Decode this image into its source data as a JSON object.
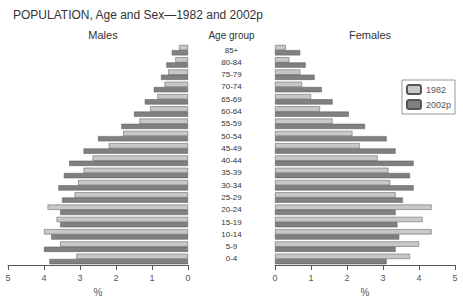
{
  "chart_data": {
    "type": "bar",
    "orientation": "horizontal",
    "title": "POPULATION, Age and Sex—1982 and 2002p",
    "ylabel": "Age group",
    "categories": [
      "0-4",
      "5-9",
      "10-14",
      "15-19",
      "20-24",
      "25-29",
      "30-34",
      "35-39",
      "40-44",
      "45-49",
      "50-54",
      "55-59",
      "60-64",
      "65-69",
      "70-74",
      "75-79",
      "80-84",
      "85+"
    ],
    "grid": false,
    "legend": "upper right",
    "panels": [
      {
        "title": "Males",
        "xlabel": "%",
        "xlim": [
          5,
          0
        ],
        "xticks": [
          5,
          4,
          3,
          2,
          1,
          0
        ],
        "series": [
          {
            "name": "1982",
            "color": "#c8c8c8",
            "values": [
              3.1,
              3.55,
              4.0,
              3.65,
              3.9,
              3.15,
              3.05,
              2.9,
              2.65,
              2.2,
              1.8,
              1.35,
              1.05,
              0.85,
              0.65,
              0.55,
              0.35,
              0.25
            ]
          },
          {
            "name": "2002p",
            "color": "#808080",
            "values": [
              3.85,
              4.0,
              3.8,
              3.55,
              3.55,
              3.5,
              3.6,
              3.45,
              3.3,
              2.9,
              2.5,
              1.85,
              1.5,
              1.2,
              0.95,
              0.75,
              0.6,
              0.45
            ]
          }
        ]
      },
      {
        "title": "Females",
        "xlabel": "%",
        "xlim": [
          0,
          5
        ],
        "xticks": [
          0,
          1,
          2,
          3,
          4,
          5
        ],
        "series": [
          {
            "name": "1982",
            "color": "#c8c8c8",
            "values": [
              3.75,
              4.0,
              4.35,
              4.1,
              4.35,
              3.35,
              3.2,
              3.15,
              2.85,
              2.35,
              2.15,
              1.6,
              1.25,
              1.0,
              0.75,
              0.7,
              0.4,
              0.3
            ]
          },
          {
            "name": "2002p",
            "color": "#808080",
            "values": [
              3.1,
              3.35,
              3.45,
              3.4,
              3.35,
              3.55,
              3.85,
              3.75,
              3.85,
              3.35,
              3.1,
              2.5,
              2.05,
              1.6,
              1.3,
              1.1,
              0.85,
              0.7
            ]
          }
        ]
      }
    ]
  }
}
